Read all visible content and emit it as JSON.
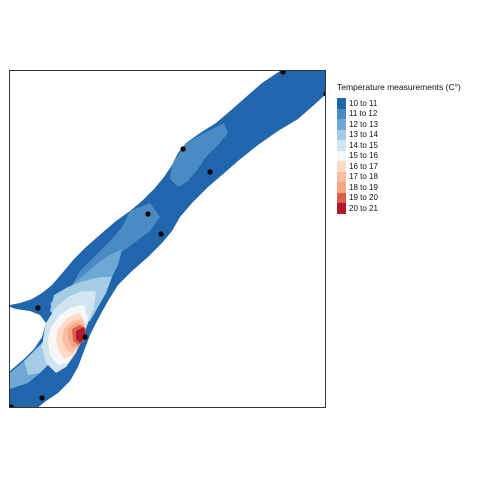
{
  "legend": {
    "title": "Temperature measurements (C°)",
    "classes": [
      {
        "label": "10 to 11",
        "color": "#2166ac"
      },
      {
        "label": "11 to 12",
        "color": "#4a8bc3"
      },
      {
        "label": "12 to 13",
        "color": "#6ea8d4"
      },
      {
        "label": "13 to 14",
        "color": "#a6cbe4"
      },
      {
        "label": "14 to 15",
        "color": "#d1e5f0"
      },
      {
        "label": "15 to 16",
        "color": "#f7f7f7"
      },
      {
        "label": "16 to 17",
        "color": "#fddbc7"
      },
      {
        "label": "17 to 18",
        "color": "#f8bca2"
      },
      {
        "label": "18 to 19",
        "color": "#f4a582"
      },
      {
        "label": "19 to 20",
        "color": "#d6604d"
      },
      {
        "label": "20 to 21",
        "color": "#b2182b"
      }
    ]
  },
  "map": {
    "measurement_points": 10
  }
}
